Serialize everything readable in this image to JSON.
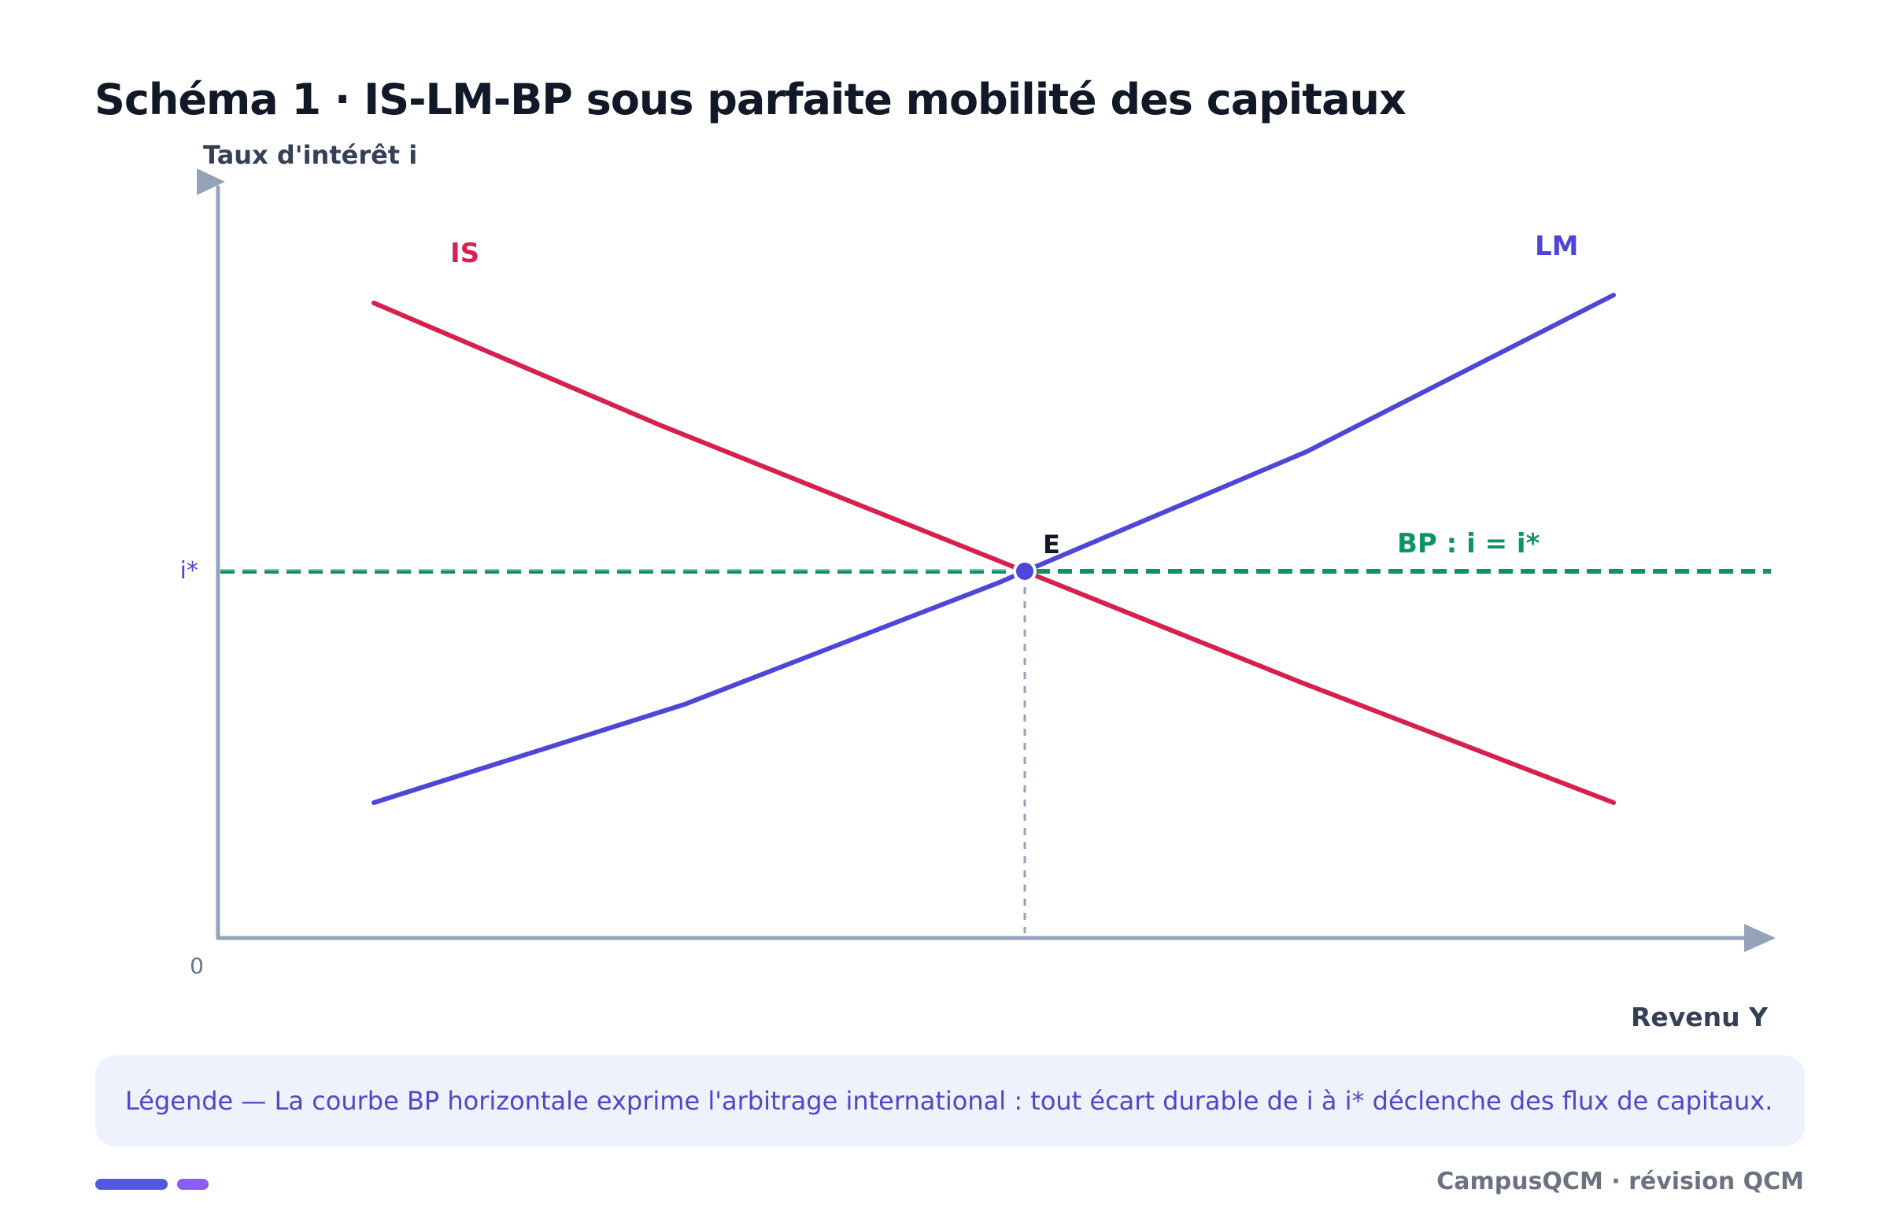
{
  "header": {
    "title": "Schéma 1 · IS-LM-BP sous parfaite mobilité des capitaux"
  },
  "axes": {
    "y_label": "Taux d'intérêt i",
    "x_label": "Revenu Y",
    "origin_label": "0",
    "istar_tick": "i*"
  },
  "curves": {
    "is": {
      "label": "IS",
      "color": "#d6204f"
    },
    "lm": {
      "label": "LM",
      "color": "#4f46d8"
    },
    "bp": {
      "label": "BP : i = i*",
      "color": "#0c9466"
    }
  },
  "equilibrium": {
    "label": "E"
  },
  "legend": {
    "text": "Légende — La courbe BP horizontale exprime l'arbitrage international : tout écart durable de i à i* déclenche des flux de capitaux."
  },
  "footer": {
    "brand": "CampusQCM · révision QCM"
  },
  "colors": {
    "axis": "#94a3b8",
    "title": "#111827",
    "legend_bg": "#eef2fd",
    "accent_primary": "#5457e3",
    "accent_secondary": "#8b5cf6"
  }
}
